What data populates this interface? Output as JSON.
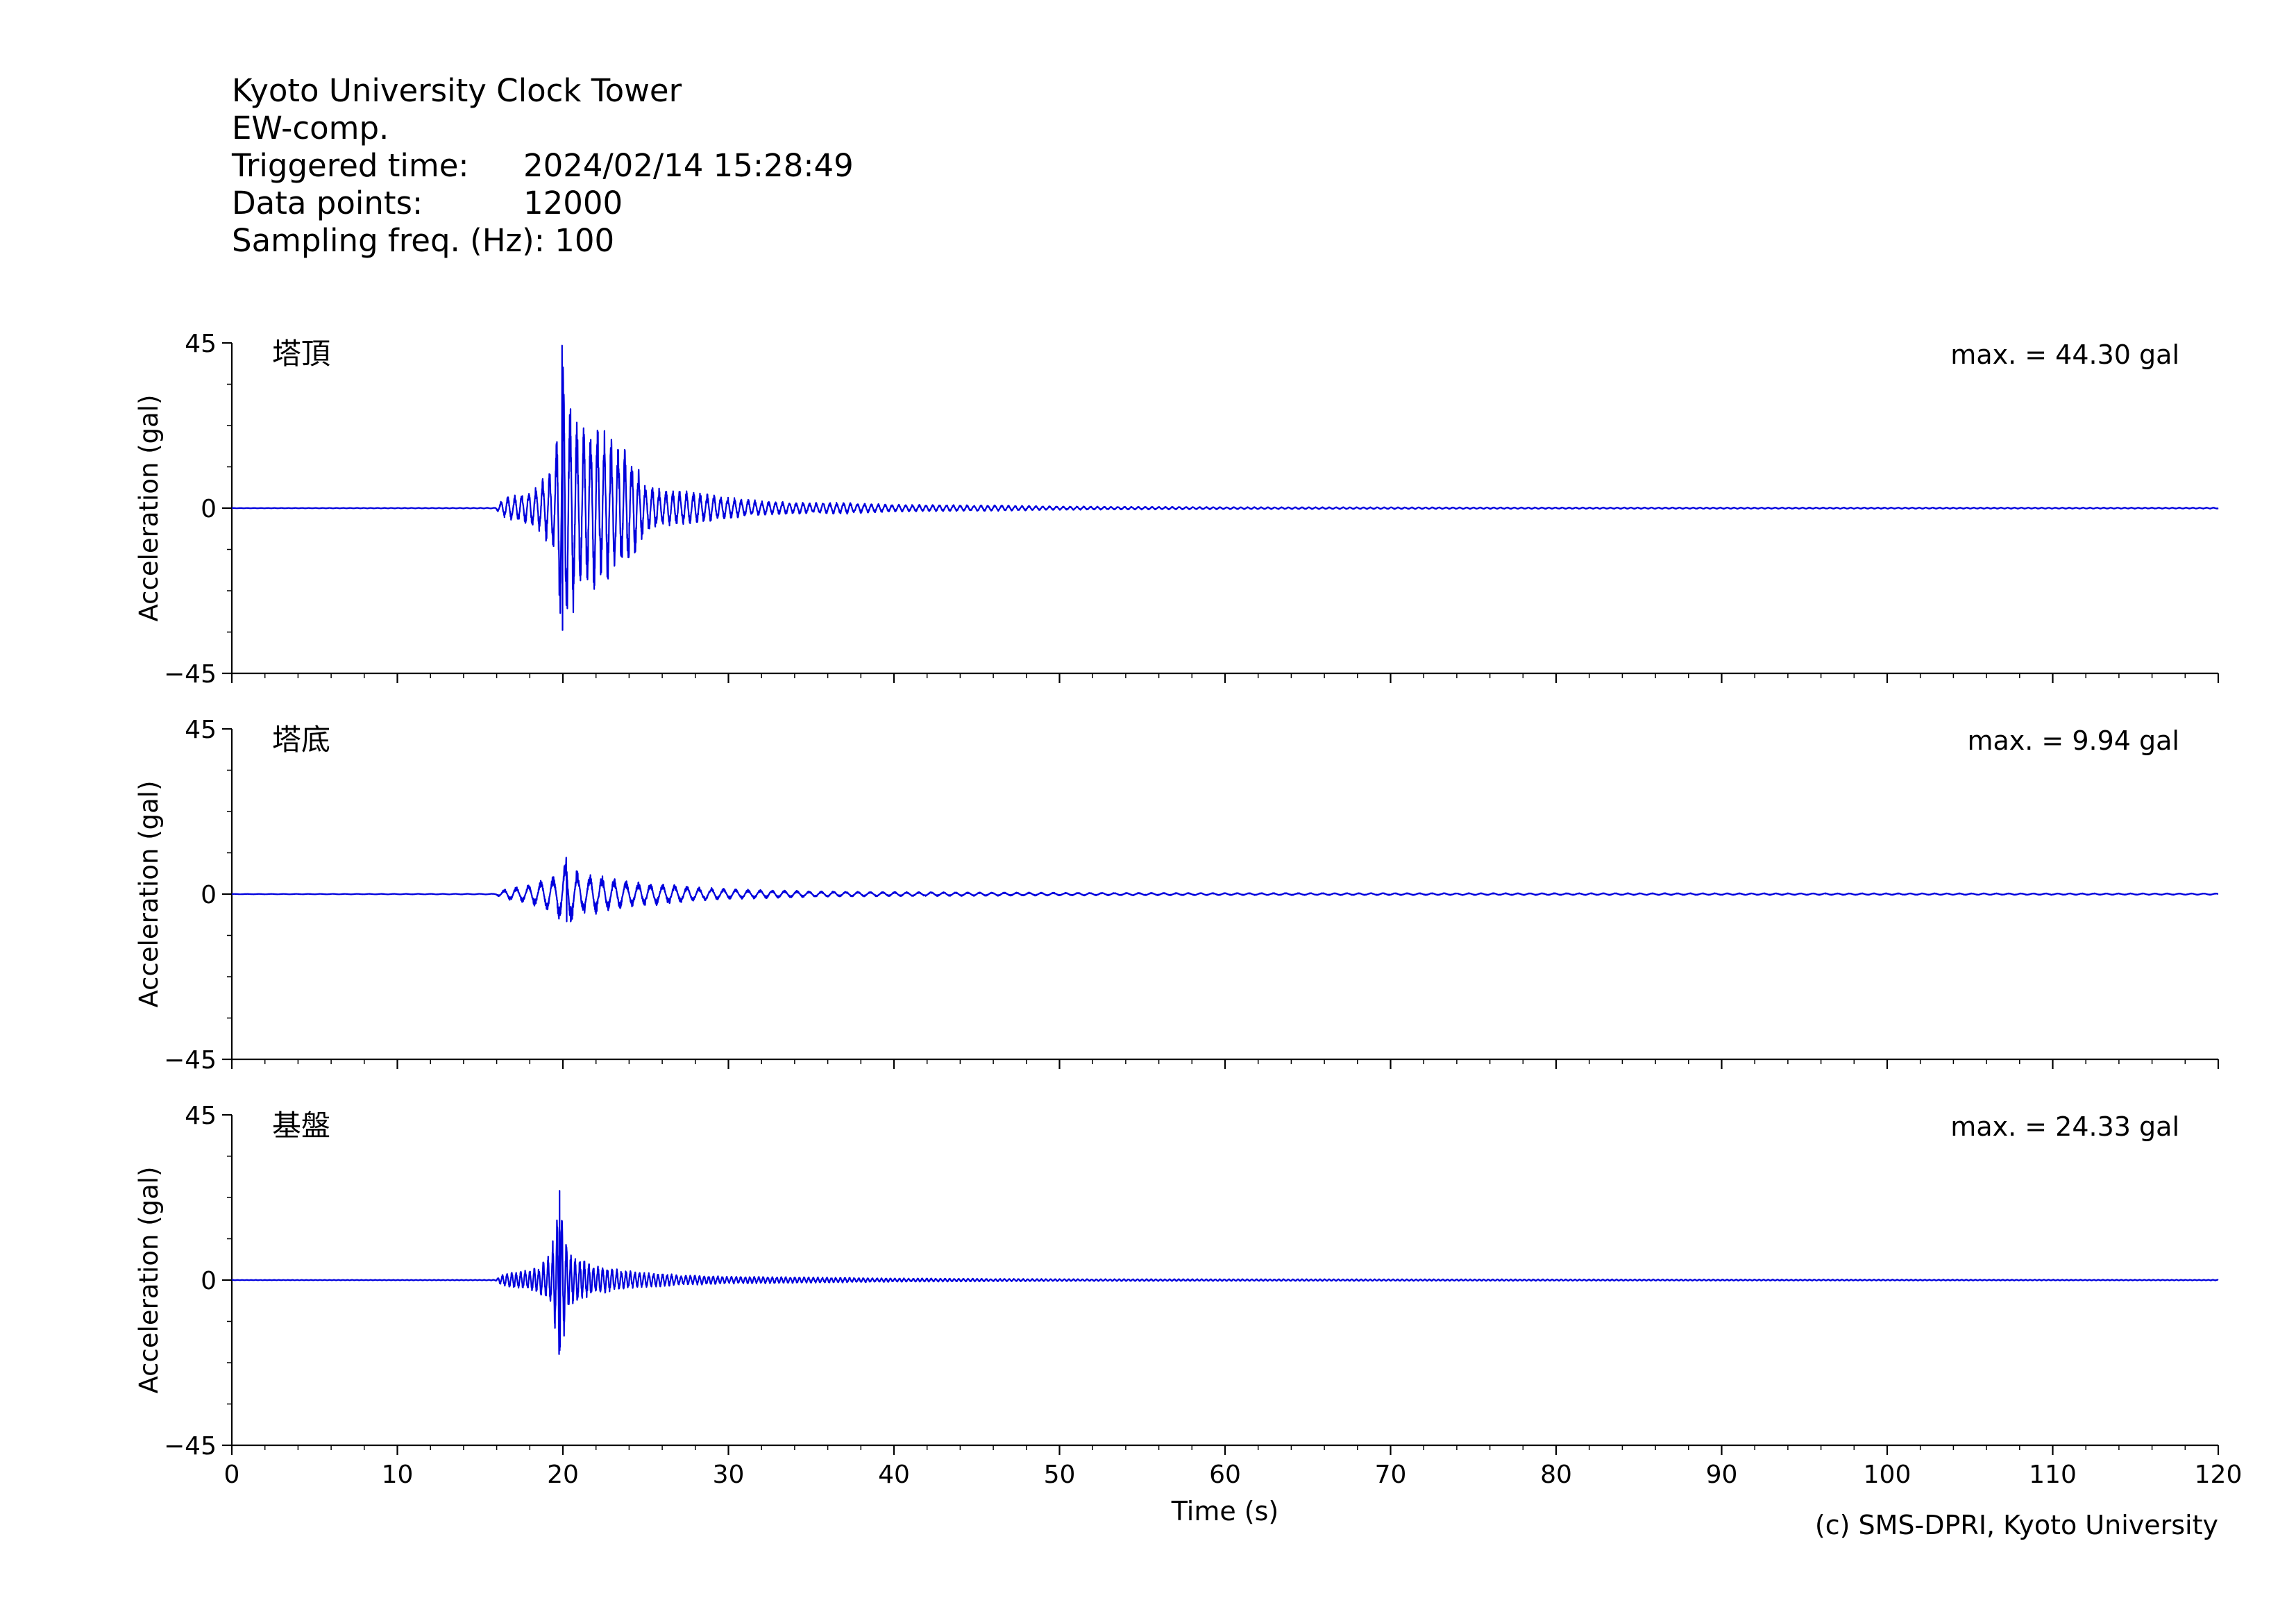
{
  "header": {
    "station": "Kyoto University Clock Tower",
    "component": "EW-comp.",
    "triggered_label": "Triggered time:",
    "triggered_value": "2024/02/14 15:28:49",
    "points_label": "Data points:",
    "points_value": "12000",
    "freq_label": "Sampling freq. (Hz):",
    "freq_value": "100"
  },
  "copyright": "(c) SMS-DPRI, Kyoto University",
  "chart_data": {
    "type": "line",
    "xlabel": "Time (s)",
    "ylabel": "Acceleration (gal)",
    "xlim": [
      0,
      120
    ],
    "ylim": [
      -45,
      45
    ],
    "x_ticks": [
      "0",
      "10",
      "20",
      "30",
      "40",
      "50",
      "60",
      "70",
      "80",
      "90",
      "100",
      "110",
      "120"
    ],
    "y_ticks": [
      "45",
      "0",
      "−45"
    ],
    "line_color": "#0000dd",
    "panels": [
      {
        "name": "塔頂",
        "max_label": "max. = 44.30 gal",
        "max": 44.3,
        "envelope": [
          [
            0,
            0.05
          ],
          [
            15.9,
            0.1
          ],
          [
            16.5,
            3
          ],
          [
            17.5,
            4
          ],
          [
            18.5,
            6
          ],
          [
            19.5,
            13
          ],
          [
            19.95,
            44.3
          ],
          [
            20.3,
            35
          ],
          [
            21,
            22
          ],
          [
            22,
            24
          ],
          [
            23,
            19
          ],
          [
            24,
            16
          ],
          [
            25,
            7
          ],
          [
            26,
            5
          ],
          [
            28,
            4.5
          ],
          [
            30,
            3
          ],
          [
            32,
            2
          ],
          [
            35,
            1.5
          ],
          [
            37,
            1.6
          ],
          [
            40,
            1
          ],
          [
            46,
            0.8
          ],
          [
            50,
            0.5
          ],
          [
            60,
            0.3
          ],
          [
            80,
            0.2
          ],
          [
            120,
            0.15
          ]
        ],
        "period": 0.42
      },
      {
        "name": "塔底",
        "max_label": "max. = 9.94 gal",
        "max": 9.94,
        "envelope": [
          [
            0,
            0.05
          ],
          [
            15.9,
            0.1
          ],
          [
            16.5,
            1.5
          ],
          [
            17.5,
            2.2
          ],
          [
            18.5,
            3.5
          ],
          [
            19.5,
            5.5
          ],
          [
            20.2,
            9.94
          ],
          [
            21,
            6
          ],
          [
            22,
            5.5
          ],
          [
            24,
            3.5
          ],
          [
            26,
            3
          ],
          [
            28,
            2
          ],
          [
            30,
            1.4
          ],
          [
            32,
            1.2
          ],
          [
            35,
            0.8
          ],
          [
            40,
            0.6
          ],
          [
            50,
            0.4
          ],
          [
            60,
            0.3
          ],
          [
            120,
            0.2
          ]
        ],
        "period": 0.75
      },
      {
        "name": "基盤",
        "max_label": "max. = 24.33 gal",
        "max": 24.33,
        "envelope": [
          [
            0,
            0.05
          ],
          [
            15.9,
            0.1
          ],
          [
            16.5,
            2
          ],
          [
            17.5,
            2.5
          ],
          [
            18.5,
            3.5
          ],
          [
            19.3,
            8
          ],
          [
            19.8,
            24.33
          ],
          [
            20.3,
            9
          ],
          [
            21,
            6
          ],
          [
            22,
            4
          ],
          [
            24,
            2.5
          ],
          [
            27,
            1.5
          ],
          [
            30,
            1
          ],
          [
            35,
            0.8
          ],
          [
            40,
            0.5
          ],
          [
            50,
            0.3
          ],
          [
            120,
            0.1
          ]
        ],
        "period": 0.28
      }
    ]
  }
}
